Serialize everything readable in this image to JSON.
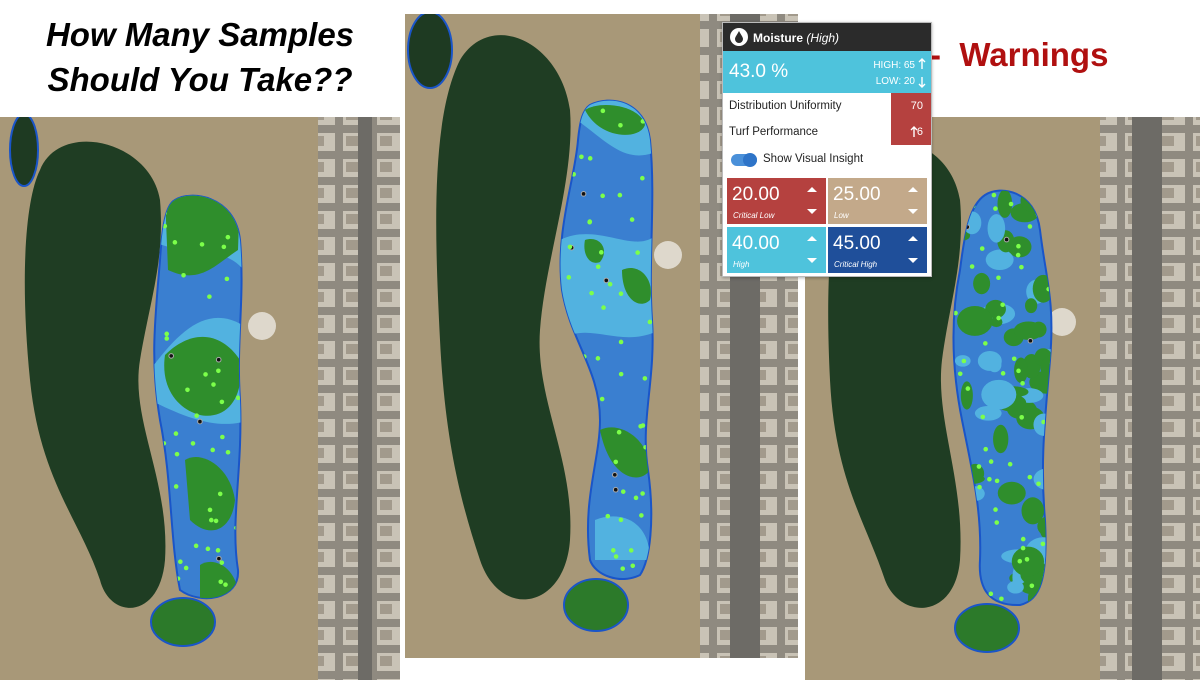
{
  "title": {
    "lines": [
      "How Many Samples",
      "Should You Take??"
    ]
  },
  "warnings_label": "-  Warnings",
  "panel": {
    "metric": "Moisture",
    "level": "(High)",
    "reading": "43.0 %",
    "high": "HIGH: 65",
    "low": "LOW: 20",
    "stats": [
      {
        "label": "Distribution Uniformity",
        "value": "70"
      },
      {
        "label": "Turf Performance",
        "value": "6"
      }
    ],
    "toggle": "Show Visual Insight",
    "thresholds": [
      {
        "value": "20.00",
        "label": "Critical Low"
      },
      {
        "value": "25.00",
        "label": "Low"
      },
      {
        "value": "40.00",
        "label": "High"
      },
      {
        "value": "45.00",
        "label": "Critical High"
      }
    ]
  }
}
